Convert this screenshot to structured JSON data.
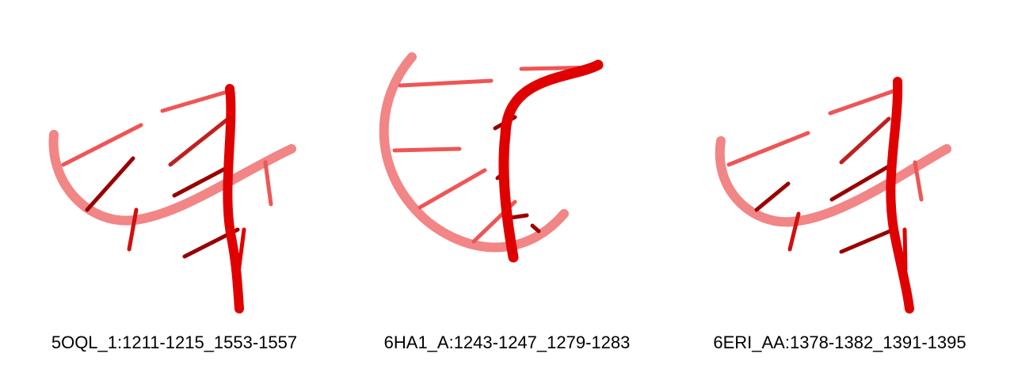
{
  "panels": [
    {
      "label": "5OQL_1:1211-1215_1553-1557"
    },
    {
      "label": "6HA1_A:1243-1247_1279-1283"
    },
    {
      "label": "6ERI_AA:1378-1382_1391-1395"
    }
  ],
  "colors": {
    "background": "#ffffff",
    "strand_front": "#e00000",
    "strand_back": "#f07070",
    "base_dark": "#990000",
    "base_light": "#ef5555",
    "text": "#000000"
  }
}
